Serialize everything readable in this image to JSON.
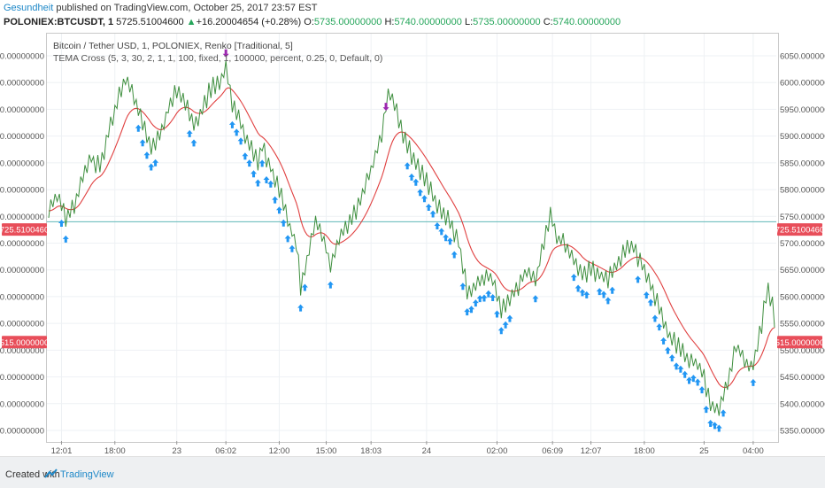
{
  "header": {
    "author": "Gesundheit",
    "published": " published on TradingView.com, October 25, 2017 23:57 EST"
  },
  "quote": {
    "symbol": "POLONIEX:BTCUSDT, 1",
    "last": "5725.51004600",
    "change": "+16.20004654 (+0.28%)",
    "o_label": "O:",
    "o": "5735.00000000",
    "h_label": "H:",
    "h": "5740.00000000",
    "l_label": "L:",
    "l": "5735.00000000",
    "c_label": "C:",
    "c": "5740.00000000"
  },
  "legend": {
    "series": "Bitcoin / Tether USD, 1, POLONIEX, Renko [Traditional, 5]",
    "indicator": "TEMA Cross (5, 3, 30, 2, 1, 1, 100, fixed, 1, 100000, percent, 0.25, 0, Default, 0)"
  },
  "footer": {
    "created_with": "Created with",
    "brand": "TradingView"
  },
  "colors": {
    "fast_line": "#3f8f3f",
    "slow_line": "#e04040",
    "long_arrow": "#2196f3",
    "short_arrow": "#9c27b0",
    "price_line": "#5fb8b8",
    "price_label": "#e84e5a",
    "grid": "#eef1f4"
  },
  "chart_data": {
    "type": "line",
    "y_ticks": [
      5350,
      5400,
      5450,
      5500,
      5550,
      5600,
      5650,
      5700,
      5750,
      5800,
      5850,
      5900,
      5950,
      6000,
      6050
    ],
    "y_tick_labels": [
      "5350.00000000",
      "5400.00000000",
      "5450.00000000",
      "5500.00000000",
      "5550.00000000",
      "5600.00000000",
      "5650.00000000",
      "5700.00000000",
      "5750.00000000",
      "5800.00000000",
      "5850.00000000",
      "5900.00000000",
      "5950.00000000",
      "6000.00000000",
      "6050.00000000"
    ],
    "ylim": [
      5325,
      6072
    ],
    "x_tick_labels": [
      "12:01",
      "18:00",
      "23",
      "06:02",
      "12:00",
      "15:00",
      "18:03",
      "24",
      "02:00",
      "06:09",
      "12:07",
      "18:00",
      "25",
      "04:00"
    ],
    "x_tick_index": [
      6,
      31,
      60,
      83,
      108,
      130,
      151,
      177,
      210,
      236,
      254,
      279,
      307,
      330
    ],
    "n_bars": 340,
    "price_markers": [
      {
        "label": "5725.51004600",
        "value": 5725.51
      },
      {
        "label": "5515.00000000",
        "value": 5515.0
      }
    ],
    "price_line_value": 5740,
    "anchors": [
      [
        0,
        5760
      ],
      [
        4,
        5790
      ],
      [
        8,
        5745
      ],
      [
        12,
        5770
      ],
      [
        16,
        5830
      ],
      [
        20,
        5860
      ],
      [
        24,
        5840
      ],
      [
        28,
        5910
      ],
      [
        32,
        5960
      ],
      [
        36,
        6010
      ],
      [
        40,
        5970
      ],
      [
        44,
        5920
      ],
      [
        48,
        5880
      ],
      [
        52,
        5900
      ],
      [
        56,
        5950
      ],
      [
        60,
        5990
      ],
      [
        64,
        5960
      ],
      [
        68,
        5920
      ],
      [
        72,
        5950
      ],
      [
        76,
        5990
      ],
      [
        80,
        6000
      ],
      [
        83,
        6030
      ],
      [
        86,
        5960
      ],
      [
        90,
        5920
      ],
      [
        94,
        5880
      ],
      [
        98,
        5850
      ],
      [
        100,
        5880
      ],
      [
        104,
        5840
      ],
      [
        108,
        5800
      ],
      [
        112,
        5740
      ],
      [
        116,
        5700
      ],
      [
        118,
        5620
      ],
      [
        121,
        5670
      ],
      [
        125,
        5740
      ],
      [
        128,
        5720
      ],
      [
        132,
        5660
      ],
      [
        136,
        5710
      ],
      [
        140,
        5730
      ],
      [
        144,
        5760
      ],
      [
        148,
        5800
      ],
      [
        152,
        5850
      ],
      [
        156,
        5900
      ],
      [
        158,
        5960
      ],
      [
        160,
        5980
      ],
      [
        164,
        5930
      ],
      [
        168,
        5880
      ],
      [
        172,
        5850
      ],
      [
        176,
        5820
      ],
      [
        180,
        5790
      ],
      [
        184,
        5760
      ],
      [
        188,
        5740
      ],
      [
        192,
        5700
      ],
      [
        196,
        5610
      ],
      [
        200,
        5620
      ],
      [
        204,
        5640
      ],
      [
        208,
        5630
      ],
      [
        212,
        5570
      ],
      [
        216,
        5600
      ],
      [
        220,
        5620
      ],
      [
        224,
        5650
      ],
      [
        228,
        5630
      ],
      [
        232,
        5700
      ],
      [
        235,
        5760
      ],
      [
        238,
        5710
      ],
      [
        242,
        5700
      ],
      [
        246,
        5670
      ],
      [
        250,
        5640
      ],
      [
        254,
        5650
      ],
      [
        258,
        5640
      ],
      [
        262,
        5630
      ],
      [
        266,
        5660
      ],
      [
        270,
        5690
      ],
      [
        274,
        5690
      ],
      [
        278,
        5660
      ],
      [
        282,
        5620
      ],
      [
        286,
        5580
      ],
      [
        290,
        5530
      ],
      [
        294,
        5510
      ],
      [
        298,
        5490
      ],
      [
        302,
        5480
      ],
      [
        306,
        5460
      ],
      [
        310,
        5400
      ],
      [
        314,
        5390
      ],
      [
        318,
        5440
      ],
      [
        322,
        5510
      ],
      [
        326,
        5480
      ],
      [
        330,
        5470
      ],
      [
        334,
        5550
      ],
      [
        337,
        5620
      ],
      [
        340,
        5560
      ]
    ],
    "legend_entries": [],
    "grid": true
  }
}
